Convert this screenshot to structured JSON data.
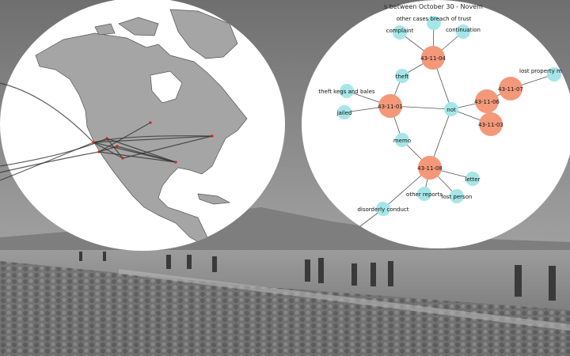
{
  "network": {
    "title": "s between October 30 - Novem",
    "colors": {
      "date_node": "#f4987a",
      "term_node": "#a6e6e8",
      "edge": "#555555"
    },
    "nodes": [
      {
        "id": "43-11-04",
        "kind": "date",
        "label": "43-11-04"
      },
      {
        "id": "43-11-01",
        "kind": "date",
        "label": "43-11-01"
      },
      {
        "id": "43-11-06",
        "kind": "date",
        "label": "43-11-06"
      },
      {
        "id": "43-11-07",
        "kind": "date",
        "label": "43-11-07"
      },
      {
        "id": "43-11-03",
        "kind": "date",
        "label": "43-11-03"
      },
      {
        "id": "43-11-08",
        "kind": "date",
        "label": "43-11-08"
      },
      {
        "id": "other-cases",
        "kind": "term",
        "label": "other cases breach of trust"
      },
      {
        "id": "complaint",
        "kind": "term",
        "label": "complaint"
      },
      {
        "id": "continuation",
        "kind": "term",
        "label": "continuation"
      },
      {
        "id": "theft",
        "kind": "term",
        "label": "theft"
      },
      {
        "id": "theft-kegs",
        "kind": "term",
        "label": "theft kegs and bales"
      },
      {
        "id": "jailed",
        "kind": "term",
        "label": "jailed"
      },
      {
        "id": "not",
        "kind": "term",
        "label": "not"
      },
      {
        "id": "lost-property",
        "kind": "term",
        "label": "lost property m"
      },
      {
        "id": "memo",
        "kind": "term",
        "label": "memo"
      },
      {
        "id": "letter",
        "kind": "term",
        "label": "letter"
      },
      {
        "id": "other-reports",
        "kind": "term",
        "label": "other reports"
      },
      {
        "id": "lost-person",
        "kind": "term",
        "label": "lost person"
      },
      {
        "id": "disorderly",
        "kind": "term",
        "label": "disorderly conduct"
      }
    ],
    "edges": [
      [
        "43-11-04",
        "other-cases"
      ],
      [
        "43-11-04",
        "complaint"
      ],
      [
        "43-11-04",
        "continuation"
      ],
      [
        "43-11-04",
        "theft"
      ],
      [
        "43-11-04",
        "not"
      ],
      [
        "43-11-01",
        "theft"
      ],
      [
        "43-11-01",
        "theft-kegs"
      ],
      [
        "43-11-01",
        "jailed"
      ],
      [
        "43-11-01",
        "not"
      ],
      [
        "43-11-01",
        "memo"
      ],
      [
        "43-11-06",
        "not"
      ],
      [
        "43-11-03",
        "not"
      ],
      [
        "43-11-06",
        "43-11-07"
      ],
      [
        "43-11-07",
        "lost-property"
      ],
      [
        "43-11-08",
        "not"
      ],
      [
        "43-11-08",
        "memo"
      ],
      [
        "43-11-08",
        "letter"
      ],
      [
        "43-11-08",
        "other-reports"
      ],
      [
        "43-11-08",
        "lost-person"
      ],
      [
        "43-11-08",
        "disorderly"
      ]
    ]
  },
  "map": {
    "colors": {
      "land": "#a5a5a5",
      "ocean": "#ffffff",
      "route": "#333333",
      "point": "#cc2222"
    }
  }
}
